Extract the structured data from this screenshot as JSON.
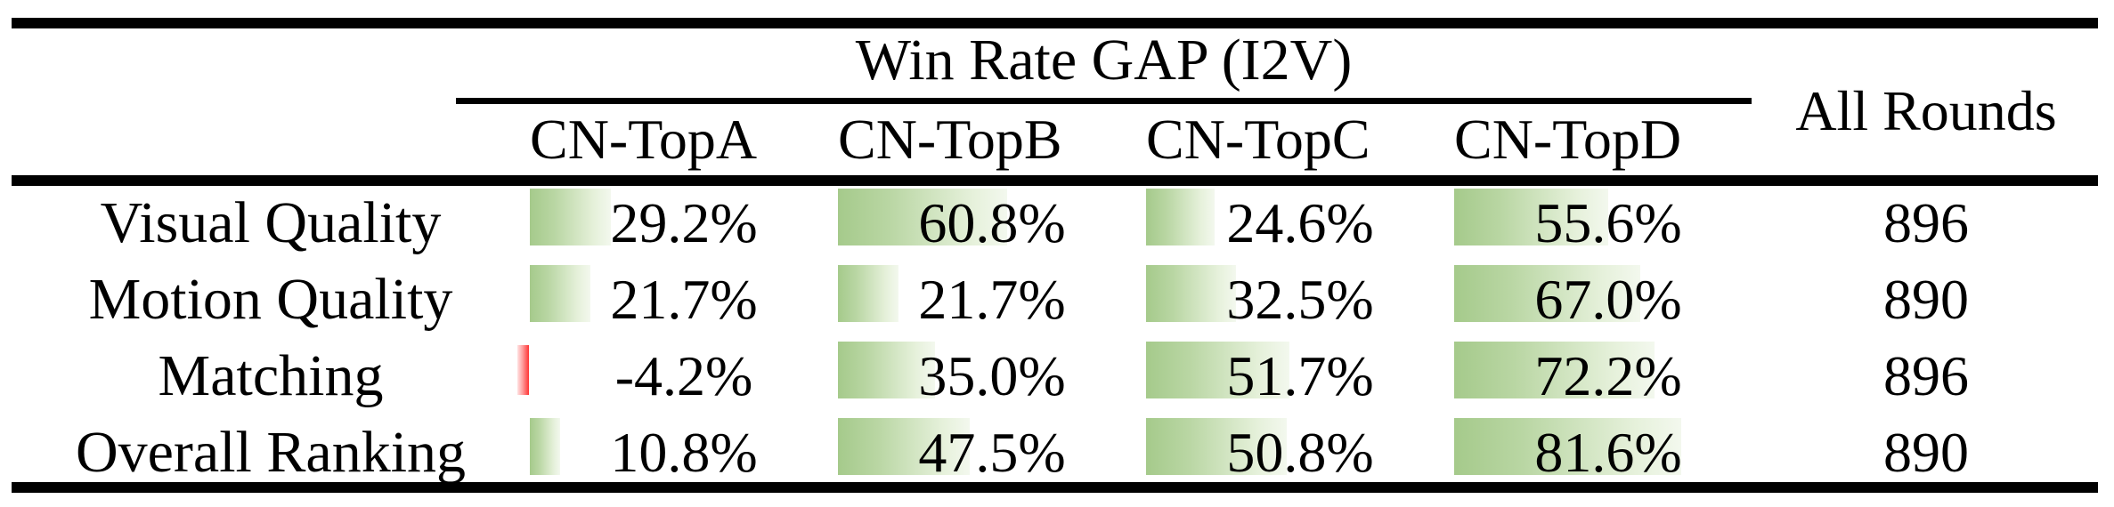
{
  "table": {
    "group_header": "Win Rate GAP (I2V)",
    "all_rounds_header": "All Rounds",
    "columns": [
      "CN-TopA",
      "CN-TopB",
      "CN-TopC",
      "CN-TopD"
    ],
    "rows": [
      {
        "label": "Visual Quality",
        "cells": [
          "29.2%",
          "60.8%",
          "24.6%",
          "55.6%"
        ],
        "all_rounds": "896"
      },
      {
        "label": "Motion Quality",
        "cells": [
          "21.7%",
          "21.7%",
          "32.5%",
          "67.0%"
        ],
        "all_rounds": "890"
      },
      {
        "label": "Matching",
        "cells": [
          "-4.2%",
          "35.0%",
          "51.7%",
          "72.2%"
        ],
        "all_rounds": "896"
      },
      {
        "label": "Overall Ranking",
        "cells": [
          "10.8%",
          "47.5%",
          "50.8%",
          "81.6%"
        ],
        "all_rounds": "890"
      }
    ]
  },
  "chart_data": {
    "type": "table",
    "title": "Win Rate GAP (I2V)",
    "row_labels": [
      "Visual Quality",
      "Motion Quality",
      "Matching",
      "Overall Ranking"
    ],
    "columns": [
      "CN-TopA",
      "CN-TopB",
      "CN-TopC",
      "CN-TopD",
      "All Rounds"
    ],
    "values_percent": [
      [
        29.2,
        60.8,
        24.6,
        55.6
      ],
      [
        21.7,
        21.7,
        32.5,
        67.0
      ],
      [
        -4.2,
        35.0,
        51.7,
        72.2
      ],
      [
        10.8,
        47.5,
        50.8,
        81.6
      ]
    ],
    "all_rounds": [
      896,
      890,
      896,
      890
    ],
    "bar_style": "in-cell gradient data bars, positive green rightward, negative red leftward",
    "positive_bar_color": "#a5ca8b",
    "negative_bar_color": "#ff3434"
  },
  "colors": {
    "background": "#ffffff",
    "rule": "#000000",
    "text": "#000000",
    "bar_positive_start": "#a5ca8b",
    "bar_positive_end": "#f3f8ee",
    "bar_negative_start": "#ff3434",
    "bar_negative_end": "#ffe3e3"
  }
}
